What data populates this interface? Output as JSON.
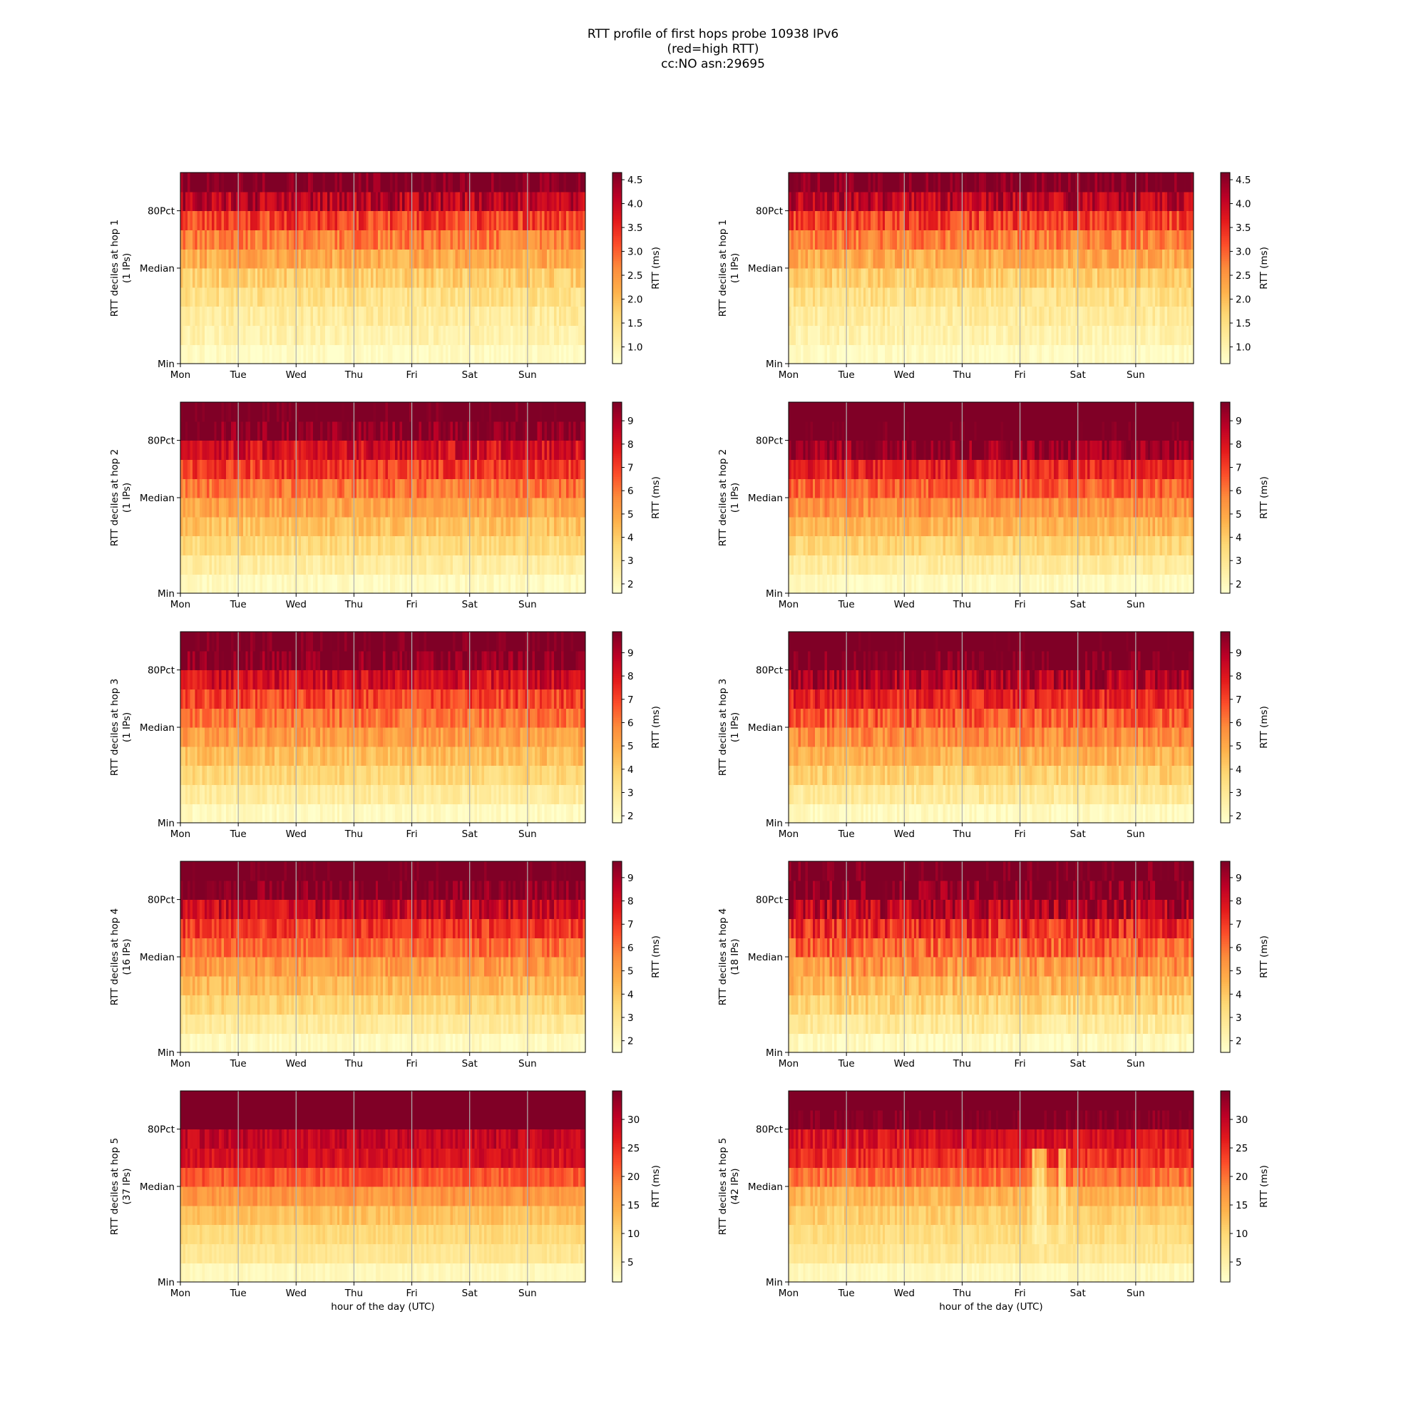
{
  "figure": {
    "title": [
      "RTT profile of first hops probe 10938 IPv6",
      "(red=high RTT)",
      "cc:NO asn:29695"
    ]
  },
  "chart_data": {
    "type": "heatmap",
    "description_rows": "10 RTT decile bands per panel, from Min (bottom) to Max (top)",
    "x_tick_labels": [
      "Mon",
      "Tue",
      "Wed",
      "Thu",
      "Fri",
      "Sat",
      "Sun"
    ],
    "y_tick_labels": [
      "Min",
      "Median",
      "80Pct"
    ],
    "xlabel_bottom": "hour of the day (UTC)",
    "colorbar_label": "RTT (ms)",
    "colormap": [
      "#ffffcc",
      "#ffeda0",
      "#fed976",
      "#feb24c",
      "#fd8d3c",
      "#fc4e2a",
      "#e31a1c",
      "#bd0026",
      "#800026"
    ],
    "panels": [
      {
        "hop": 1,
        "ylabel": "RTT deciles at hop 1",
        "ips": "(1 IPs)",
        "column": "left",
        "cbar_ticks": [
          "1.0",
          "1.5",
          "2.0",
          "2.5",
          "3.0",
          "3.5",
          "4.0",
          "4.5"
        ],
        "cbar_range": [
          0.65,
          4.65
        ],
        "decile_rtt": [
          0.75,
          1.0,
          1.2,
          1.45,
          1.75,
          2.25,
          2.75,
          3.3,
          4.1,
          4.8
        ],
        "noise": 0.45,
        "events": []
      },
      {
        "hop": 1,
        "ylabel": "RTT deciles at hop 1",
        "ips": "(1 IPs)",
        "column": "right",
        "cbar_ticks": [
          "1.0",
          "1.5",
          "2.0",
          "2.5",
          "3.0",
          "3.5",
          "4.0",
          "4.5"
        ],
        "cbar_range": [
          0.65,
          4.65
        ],
        "decile_rtt": [
          0.75,
          1.0,
          1.2,
          1.45,
          1.75,
          2.25,
          2.75,
          3.3,
          4.1,
          4.8
        ],
        "noise": 0.45,
        "events": []
      },
      {
        "hop": 2,
        "ylabel": "RTT deciles at hop 2",
        "ips": "(1 IPs)",
        "column": "left",
        "cbar_ticks": [
          "2",
          "3",
          "4",
          "5",
          "6",
          "7",
          "8",
          "9"
        ],
        "cbar_range": [
          1.6,
          9.8
        ],
        "decile_rtt": [
          1.9,
          2.6,
          3.5,
          4.3,
          5.1,
          6.1,
          7.1,
          8.2,
          9.8,
          10.5
        ],
        "noise": 0.9,
        "events": []
      },
      {
        "hop": 2,
        "ylabel": "RTT deciles at hop 2",
        "ips": "(1 IPs)",
        "column": "right",
        "cbar_ticks": [
          "2",
          "3",
          "4",
          "5",
          "6",
          "7",
          "8",
          "9"
        ],
        "cbar_range": [
          1.6,
          9.8
        ],
        "decile_rtt": [
          1.9,
          2.7,
          3.7,
          4.6,
          5.5,
          6.5,
          7.6,
          9.4,
          10.5,
          11.0
        ],
        "noise": 0.9,
        "events": []
      },
      {
        "hop": 3,
        "ylabel": "RTT deciles at hop 3",
        "ips": "(1 IPs)",
        "column": "left",
        "cbar_ticks": [
          "2",
          "3",
          "4",
          "5",
          "6",
          "7",
          "8",
          "9"
        ],
        "cbar_range": [
          1.7,
          9.9
        ],
        "decile_rtt": [
          2.0,
          2.8,
          3.7,
          4.5,
          5.3,
          6.2,
          7.1,
          8.3,
          9.9,
          10.5
        ],
        "noise": 0.9,
        "events": []
      },
      {
        "hop": 3,
        "ylabel": "RTT deciles at hop 3",
        "ips": "(1 IPs)",
        "column": "right",
        "cbar_ticks": [
          "2",
          "3",
          "4",
          "5",
          "6",
          "7",
          "8",
          "9"
        ],
        "cbar_range": [
          1.7,
          9.9
        ],
        "decile_rtt": [
          2.0,
          2.9,
          3.9,
          4.8,
          5.7,
          6.7,
          7.7,
          9.0,
          10.3,
          11.0
        ],
        "noise": 1.0,
        "events": []
      },
      {
        "hop": 4,
        "ylabel": "RTT deciles at hop 4",
        "ips": "(16 IPs)",
        "column": "left",
        "cbar_ticks": [
          "2",
          "3",
          "4",
          "5",
          "6",
          "7",
          "8",
          "9"
        ],
        "cbar_range": [
          1.5,
          9.7
        ],
        "decile_rtt": [
          1.8,
          2.7,
          3.6,
          4.4,
          5.2,
          6.1,
          7.0,
          8.3,
          9.8,
          10.5
        ],
        "noise": 0.9,
        "events": []
      },
      {
        "hop": 4,
        "ylabel": "RTT deciles at hop 4",
        "ips": "(18 IPs)",
        "column": "right",
        "cbar_ticks": [
          "2",
          "3",
          "4",
          "5",
          "6",
          "7",
          "8",
          "9"
        ],
        "cbar_range": [
          1.5,
          9.7
        ],
        "decile_rtt": [
          1.8,
          2.7,
          3.6,
          4.4,
          5.3,
          6.3,
          7.3,
          8.6,
          9.9,
          10.5
        ],
        "noise": 1.2,
        "events": []
      },
      {
        "hop": 5,
        "ylabel": "RTT deciles at hop 5",
        "ips": "(37 IPs)",
        "column": "left",
        "cbar_ticks": [
          "5",
          "10",
          "15",
          "20",
          "25",
          "30"
        ],
        "cbar_range": [
          1.5,
          35
        ],
        "decile_rtt": [
          3,
          7,
          9.5,
          12.5,
          17,
          22,
          28,
          30,
          38,
          40
        ],
        "noise": 2.5,
        "events": []
      },
      {
        "hop": 5,
        "ylabel": "RTT deciles at hop 5",
        "ips": "(42 IPs)",
        "column": "right",
        "cbar_ticks": [
          "5",
          "10",
          "15",
          "20",
          "25",
          "30"
        ],
        "cbar_range": [
          1.5,
          35
        ],
        "decile_rtt": [
          3,
          7,
          9,
          11,
          14,
          20,
          25,
          28,
          36,
          40
        ],
        "noise": 3.0,
        "events": [
          [
            4.2,
            4.45
          ],
          [
            4.65,
            4.75
          ]
        ]
      }
    ]
  }
}
